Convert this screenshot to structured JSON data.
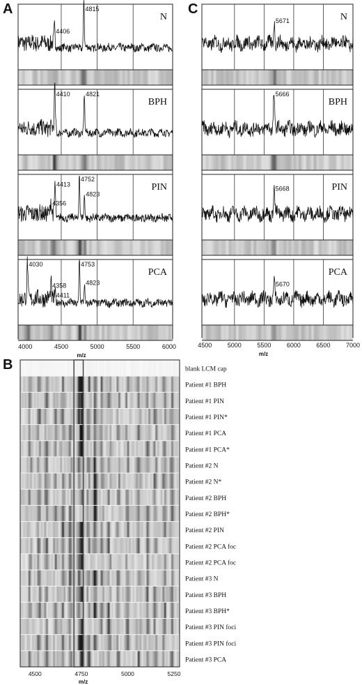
{
  "panels": {
    "A": {
      "letter": "A",
      "xlabel": "m/z",
      "xticks": [
        "4000",
        "4500",
        "5000",
        "5500",
        "6000"
      ]
    },
    "C": {
      "letter": "C",
      "xlabel": "m/z",
      "xticks": [
        "4500",
        "5000",
        "5500",
        "6000",
        "6500",
        "7000"
      ]
    },
    "B": {
      "letter": "B",
      "xlabel": "m/z",
      "xticks": [
        "4500",
        "4750",
        "5000",
        "5250"
      ]
    }
  },
  "chart_data": [
    {
      "panel": "A",
      "type": "line",
      "xlabel": "m/z",
      "xlim": [
        3900,
        6050
      ],
      "grid": true,
      "series": [
        {
          "name": "N",
          "peaks": [
            {
              "mz": 4406,
              "label": "4406",
              "height": 0.28
            },
            {
              "mz": 4815,
              "label": "4815",
              "height": 0.95
            }
          ]
        },
        {
          "name": "BPH",
          "peaks": [
            {
              "mz": 4410,
              "label": "4410",
              "height": 0.85
            },
            {
              "mz": 4821,
              "label": "4821",
              "height": 0.72
            }
          ]
        },
        {
          "name": "PIN",
          "peaks": [
            {
              "mz": 4356,
              "label": "4356",
              "height": 0.25
            },
            {
              "mz": 4413,
              "label": "4413",
              "height": 0.6
            },
            {
              "mz": 4752,
              "label": "4752",
              "height": 0.88
            },
            {
              "mz": 4823,
              "label": "4823",
              "height": 0.42
            }
          ]
        },
        {
          "name": "PCA",
          "peaks": [
            {
              "mz": 4030,
              "label": "4030",
              "height": 0.72
            },
            {
              "mz": 4358,
              "label": "4358",
              "height": 0.3
            },
            {
              "mz": 4411,
              "label": "4411",
              "height": 0.12
            },
            {
              "mz": 4753,
              "label": "4753",
              "height": 0.85
            },
            {
              "mz": 4823,
              "label": "4823",
              "height": 0.35
            }
          ]
        }
      ]
    },
    {
      "panel": "C",
      "type": "line",
      "xlabel": "m/z",
      "xlim": [
        4450,
        7000
      ],
      "grid": true,
      "series": [
        {
          "name": "N",
          "peaks": [
            {
              "mz": 5671,
              "label": "5671",
              "height": 0.45
            }
          ]
        },
        {
          "name": "BPH",
          "peaks": [
            {
              "mz": 5666,
              "label": "5666",
              "height": 0.72
            }
          ]
        },
        {
          "name": "PIN",
          "peaks": [
            {
              "mz": 5668,
              "label": "5668",
              "height": 0.5
            }
          ]
        },
        {
          "name": "PCA",
          "peaks": [
            {
              "mz": 5670,
              "label": "5670",
              "height": 0.3
            }
          ]
        }
      ]
    },
    {
      "panel": "B",
      "type": "heatmap",
      "xlabel": "m/z",
      "xlim": [
        4420,
        5280
      ],
      "highlight_range": [
        4710,
        4760
      ],
      "rows": [
        "blank LCM cap",
        "Patient #1 BPH",
        "Patient #1 PIN",
        "Patient #1 PIN*",
        "Patient #1 PCA",
        "Patient #1 PCA*",
        "Patient #2 N",
        "Patient #2 N*",
        "Patient #2 BPH",
        "Patient #2 BPH*",
        "Patient #2 PIN",
        "Patient #2 PCA foc",
        "Patient #2 PCA foc",
        "Patient #3 N",
        "Patient #3 BPH",
        "Patient #3 BPH*",
        "Patient #3 PIN foci",
        "Patient #3 PIN foci",
        "Patient #3 PCA"
      ]
    }
  ]
}
